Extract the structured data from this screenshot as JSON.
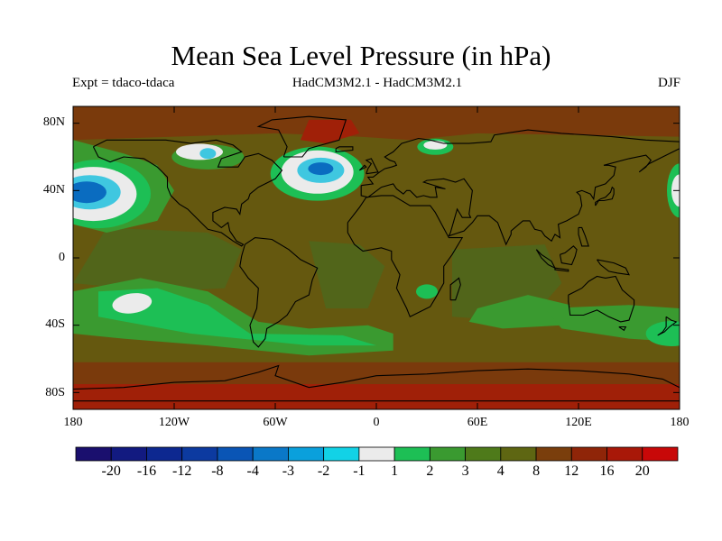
{
  "title": "Mean Sea Level Pressure (in hPa)",
  "subtitle_left": "Expt = tdaco-tdaca",
  "subtitle_center": "HadCM3M2.1 - HadCM3M2.1",
  "subtitle_right": "DJF",
  "lat_labels": [
    "80N",
    "40N",
    "0",
    "40S",
    "80S"
  ],
  "lon_labels": [
    "180",
    "120W",
    "60W",
    "0",
    "60E",
    "120E",
    "180"
  ],
  "colorbar": {
    "labels": [
      "-20",
      "-16",
      "-12",
      "-8",
      "-4",
      "-3",
      "-2",
      "-1",
      "1",
      "2",
      "3",
      "4",
      "8",
      "12",
      "16",
      "20"
    ],
    "colors": [
      "#1a0f6e",
      "#121a80",
      "#0d2890",
      "#0c3aa0",
      "#0a55b5",
      "#0a78c8",
      "#0aa0dc",
      "#12d2e6",
      "#ebebeb",
      "#1dbf55",
      "#3a9a30",
      "#4e7a1a",
      "#5e6612",
      "#7a3e0c",
      "#8f2508",
      "#a81808",
      "#c80808"
    ]
  },
  "map_colors": {
    "background": "#65580f",
    "ocean_mid": "#51651a",
    "positive_strong": "#7a3a0c",
    "positive_max": "#a02008",
    "green_light": "#1dbf55",
    "green_mid": "#3a9a30",
    "white": "#ebebeb",
    "cyan": "#3fc7e0",
    "blue": "#0a6cc0",
    "coast": "#000000"
  }
}
